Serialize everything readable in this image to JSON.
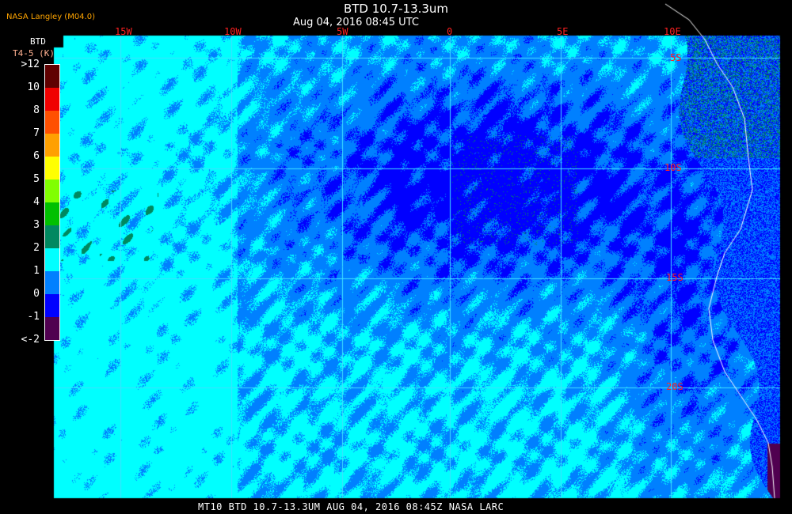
{
  "header": {
    "title": "BTD 10.7-13.3um",
    "subtitle": "Aug 04, 2016 08:45 UTC",
    "organization": "NASA Langley (M04.0)"
  },
  "legend": {
    "title": "BTD",
    "units": "T4-5 (K)",
    "labels": [
      ">12",
      "10",
      "8",
      "7",
      "6",
      "5",
      "4",
      "3",
      "2",
      "1",
      "0",
      "-1",
      "<-2"
    ],
    "colors": [
      "#600000",
      "#f00000",
      "#ff5000",
      "#ffa000",
      "#ffff00",
      "#80ff00",
      "#00c000",
      "#008860",
      "#00ffff",
      "#0080ff",
      "#0000ff",
      "#500050"
    ]
  },
  "map": {
    "longitude_labels": [
      "15W",
      "10W",
      "5W",
      "0",
      "5E",
      "10E"
    ],
    "latitude_labels": [
      "5S",
      "10S",
      "15S",
      "20S"
    ],
    "colors": {
      "grid": "#40e0ff",
      "coastline": "#ffffff",
      "label": "#ff2020"
    }
  },
  "footer": {
    "caption": "MT10  BTD 10.7-13.3UM   AUG 04, 2016 08:45Z   NASA LARC"
  }
}
